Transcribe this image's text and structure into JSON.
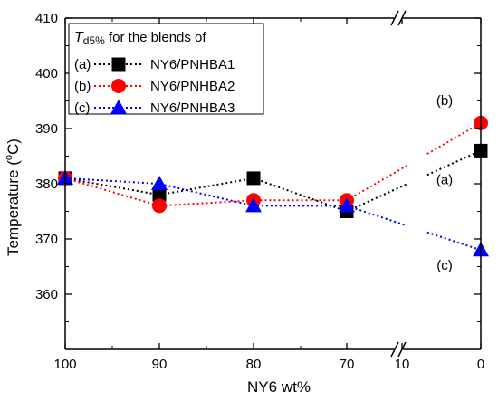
{
  "chart_data": {
    "type": "line",
    "xlabel": "NY6 wt%",
    "ylabel_text": "Temperature (",
    "ylabel_sup": "o",
    "ylabel_unit": "C)",
    "ylim": [
      350,
      410
    ],
    "yticks": [
      360,
      370,
      380,
      390,
      400,
      410
    ],
    "x_categories": [
      "100",
      "90",
      "80",
      "70",
      "10",
      "0"
    ],
    "axis_break": "between 70 and 10",
    "legend": {
      "title_italic": "T",
      "title_sub": "d5%",
      "title_rest": " for the blends of",
      "placement": "top-left"
    },
    "series": [
      {
        "name": "NY6/PNHBA1",
        "tag": "(a)",
        "marker": "square",
        "color": "#000000",
        "points": [
          {
            "x": "100",
            "y": 381
          },
          {
            "x": "90",
            "y": 378
          },
          {
            "x": "80",
            "y": 381
          },
          {
            "x": "70",
            "y": 375
          },
          {
            "x": "0",
            "y": 386
          }
        ]
      },
      {
        "name": "NY6/PNHBA2",
        "tag": "(b)",
        "marker": "circle",
        "color": "#ff0000",
        "points": [
          {
            "x": "100",
            "y": 381
          },
          {
            "x": "90",
            "y": 376
          },
          {
            "x": "80",
            "y": 377
          },
          {
            "x": "70",
            "y": 377
          },
          {
            "x": "0",
            "y": 391
          }
        ]
      },
      {
        "name": "NY6/PNHBA3",
        "tag": "(c)",
        "marker": "triangle",
        "color": "#0000ff",
        "points": [
          {
            "x": "100",
            "y": 381
          },
          {
            "x": "90",
            "y": 380
          },
          {
            "x": "80",
            "y": 376
          },
          {
            "x": "70",
            "y": 376
          },
          {
            "x": "0",
            "y": 368
          }
        ]
      }
    ]
  }
}
